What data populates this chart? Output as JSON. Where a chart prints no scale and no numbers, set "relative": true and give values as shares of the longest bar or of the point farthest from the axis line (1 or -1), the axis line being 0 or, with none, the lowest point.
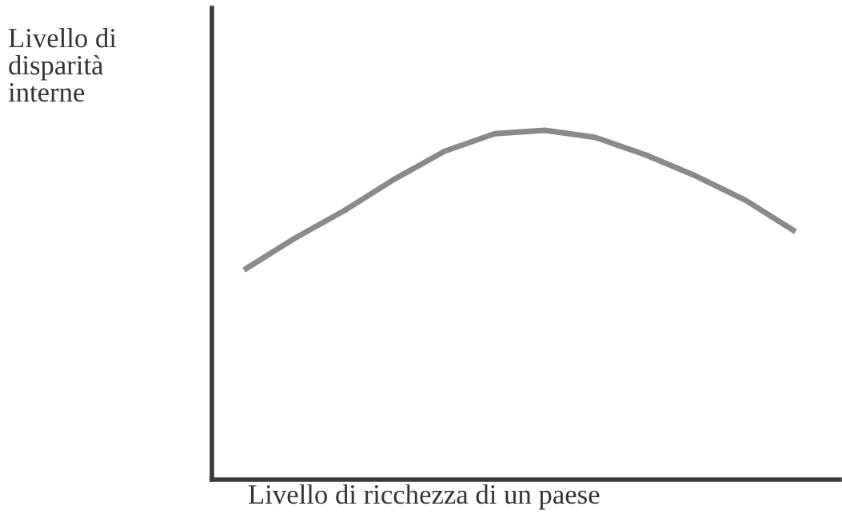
{
  "chart_data": {
    "type": "line",
    "relative": true,
    "xlabel": "Livello di ricchezza di un paese",
    "ylabel": "Livello di\ndisparità\ninterne",
    "categories": [
      null,
      null,
      null,
      null,
      null,
      null,
      null,
      null,
      null,
      null,
      null,
      null
    ],
    "series": [
      {
        "color": "#8a8a8a",
        "values": [
          0.6,
          0.69,
          0.77,
          0.86,
          0.94,
          0.99,
          1,
          0.98,
          0.93,
          0.87,
          0.8,
          0.71
        ]
      }
    ],
    "grid": false,
    "legend": false,
    "marker": "none",
    "line_style": "solid"
  }
}
